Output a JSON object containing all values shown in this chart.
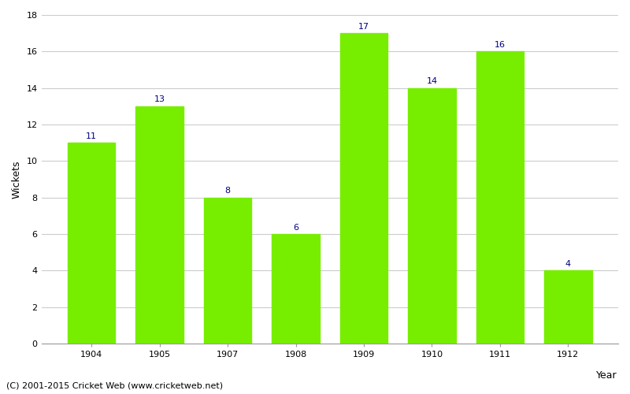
{
  "years": [
    "1904",
    "1905",
    "1907",
    "1908",
    "1909",
    "1910",
    "1911",
    "1912"
  ],
  "wickets": [
    11,
    13,
    8,
    6,
    17,
    14,
    16,
    4
  ],
  "bar_color": "#77ee00",
  "bar_edge_color": "#77ee00",
  "xlabel": "Year",
  "ylabel": "Wickets",
  "ylim": [
    0,
    18
  ],
  "yticks": [
    0,
    2,
    4,
    6,
    8,
    10,
    12,
    14,
    16,
    18
  ],
  "label_color": "#000080",
  "label_fontsize": 8,
  "axis_label_fontsize": 9,
  "tick_fontsize": 8,
  "footnote": "(C) 2001-2015 Cricket Web (www.cricketweb.net)",
  "footnote_fontsize": 8,
  "background_color": "#ffffff",
  "grid_color": "#cccccc"
}
